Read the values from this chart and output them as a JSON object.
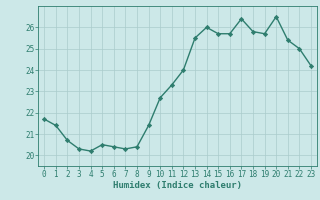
{
  "x": [
    0,
    1,
    2,
    3,
    4,
    5,
    6,
    7,
    8,
    9,
    10,
    11,
    12,
    13,
    14,
    15,
    16,
    17,
    18,
    19,
    20,
    21,
    22,
    23
  ],
  "y": [
    21.7,
    21.4,
    20.7,
    20.3,
    20.2,
    20.5,
    20.4,
    20.3,
    20.4,
    21.4,
    22.7,
    23.3,
    24.0,
    25.5,
    26.0,
    25.7,
    25.7,
    26.4,
    25.8,
    25.7,
    26.5,
    25.4,
    25.0,
    24.2
  ],
  "line_color": "#2e7d6e",
  "marker": "D",
  "marker_size": 2.2,
  "bg_color": "#cce8e8",
  "grid_color": "#aacccc",
  "xlabel": "Humidex (Indice chaleur)",
  "ylim": [
    19.5,
    27.0
  ],
  "xlim": [
    -0.5,
    23.5
  ],
  "yticks": [
    20,
    21,
    22,
    23,
    24,
    25,
    26
  ],
  "xticks": [
    0,
    1,
    2,
    3,
    4,
    5,
    6,
    7,
    8,
    9,
    10,
    11,
    12,
    13,
    14,
    15,
    16,
    17,
    18,
    19,
    20,
    21,
    22,
    23
  ],
  "tick_color": "#2e7d6e",
  "tick_fontsize": 5.5,
  "xlabel_fontsize": 6.5,
  "linewidth": 1.0
}
